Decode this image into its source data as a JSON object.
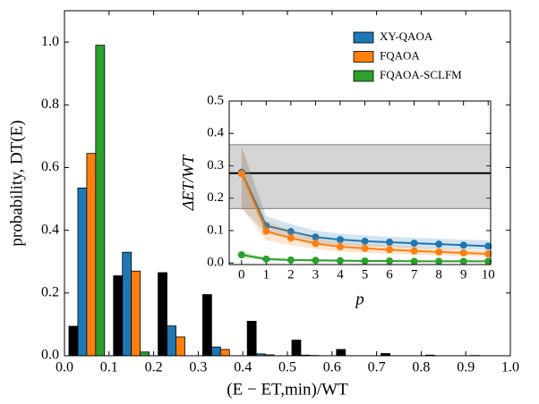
{
  "chart_data": [
    {
      "type": "bar",
      "x_label": "(E − ET,min)/WT",
      "y_label": "probability, DT(E)",
      "x": [
        0.05,
        0.15,
        0.25,
        0.35,
        0.45,
        0.55,
        0.65,
        0.75,
        0.85,
        0.95
      ],
      "series": [
        {
          "color": "#000000",
          "values": [
            0.094,
            0.255,
            0.265,
            0.195,
            0.11,
            0.05,
            0.02,
            0.007,
            0.002,
            0.001
          ]
        },
        {
          "name": "XY-QAOA",
          "color": "#1f77b4",
          "values": [
            0.535,
            0.33,
            0.095,
            0.028,
            0.006,
            0.002,
            0,
            0,
            0,
            0
          ]
        },
        {
          "name": "FQAOA",
          "color": "#ff7f0e",
          "values": [
            0.645,
            0.27,
            0.06,
            0.02,
            0.003,
            0.001,
            0,
            0,
            0,
            0
          ]
        },
        {
          "name": "FQAOA-SCLFM",
          "color": "#2ca02c",
          "values": [
            0.99,
            0.012,
            0,
            0,
            0,
            0,
            0,
            0,
            0,
            0
          ]
        }
      ],
      "xlim": [
        0,
        1
      ],
      "ylim": [
        0,
        1.1
      ],
      "xticks": [
        {
          "value": 0,
          "label": "0.0"
        },
        0.1,
        0.2,
        0.3,
        0.4,
        0.5,
        0.6,
        0.7,
        0.8,
        0.9,
        {
          "value": 1,
          "label": "1.0"
        }
      ],
      "yticks": [
        {
          "value": 0,
          "label": "0.0"
        },
        0.2,
        0.4,
        0.6,
        0.8,
        {
          "value": 1,
          "label": "1.0"
        }
      ],
      "legend": "upper right"
    },
    {
      "type": "line",
      "x_label": "p",
      "y_label": "ΔET/WT",
      "x": [
        0,
        1,
        2,
        3,
        4,
        5,
        6,
        7,
        8,
        9,
        10
      ],
      "reference": {
        "value": 0.277,
        "lower": 0.168,
        "upper": 0.365
      },
      "series": [
        {
          "name": "XY-QAOA",
          "color": "#1f77b4",
          "values": [
            0.28,
            0.115,
            0.097,
            0.08,
            0.072,
            0.067,
            0.064,
            0.061,
            0.058,
            0.055,
            0.052
          ],
          "lower": [
            0.17,
            0.09,
            0.075,
            0.062,
            0.055,
            0.051,
            0.049,
            0.046,
            0.044,
            0.042,
            0.04
          ],
          "upper": [
            0.36,
            0.145,
            0.12,
            0.1,
            0.09,
            0.085,
            0.081,
            0.078,
            0.075,
            0.072,
            0.07
          ]
        },
        {
          "name": "FQAOA",
          "color": "#ff7f0e",
          "values": [
            0.275,
            0.098,
            0.077,
            0.06,
            0.05,
            0.045,
            0.041,
            0.037,
            0.034,
            0.031,
            0.028
          ],
          "lower": [
            0.17,
            0.07,
            0.055,
            0.043,
            0.035,
            0.031,
            0.028,
            0.025,
            0.023,
            0.021,
            0.019
          ],
          "upper": [
            0.36,
            0.13,
            0.1,
            0.078,
            0.066,
            0.06,
            0.055,
            0.05,
            0.046,
            0.042,
            0.038
          ]
        },
        {
          "name": "FQAOA-SCLFM",
          "color": "#2ca02c",
          "values": [
            0.025,
            0.012,
            0.009,
            0.008,
            0.007,
            0.006,
            0.006,
            0.005,
            0.005,
            0.005,
            0.005
          ],
          "lower": [
            0.015,
            0.007,
            0.005,
            0.004,
            0.004,
            0.003,
            0.003,
            0.003,
            0.003,
            0.003,
            0.003
          ],
          "upper": [
            0.035,
            0.017,
            0.013,
            0.012,
            0.01,
            0.009,
            0.009,
            0.008,
            0.008,
            0.008,
            0.008
          ]
        }
      ],
      "xlim": [
        -0.5,
        10.1
      ],
      "ylim": [
        -0.005,
        0.5
      ],
      "xticks": [
        0,
        1,
        2,
        3,
        4,
        5,
        6,
        7,
        8,
        9,
        10
      ],
      "yticks": [
        {
          "value": 0,
          "label": "0.0"
        },
        0.1,
        0.2,
        0.3,
        0.4,
        0.5
      ]
    }
  ]
}
